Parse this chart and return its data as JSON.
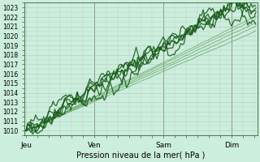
{
  "xlabel": "Pression niveau de la mer( hPa )",
  "ylim": [
    1009.5,
    1023.5
  ],
  "yticks": [
    1010,
    1011,
    1012,
    1013,
    1014,
    1015,
    1016,
    1017,
    1018,
    1019,
    1020,
    1021,
    1022,
    1023
  ],
  "day_labels": [
    "Jeu",
    "Ven",
    "Sam",
    "Dim"
  ],
  "n_points": 145,
  "background_color": "#cceedd",
  "grid_color_h": "#aaccbb",
  "grid_color_v": "#ddbbcc",
  "line_color_dark": "#1a5c1a",
  "line_color_thin": "#559955",
  "figsize": [
    3.2,
    2.0
  ],
  "dpi": 100
}
